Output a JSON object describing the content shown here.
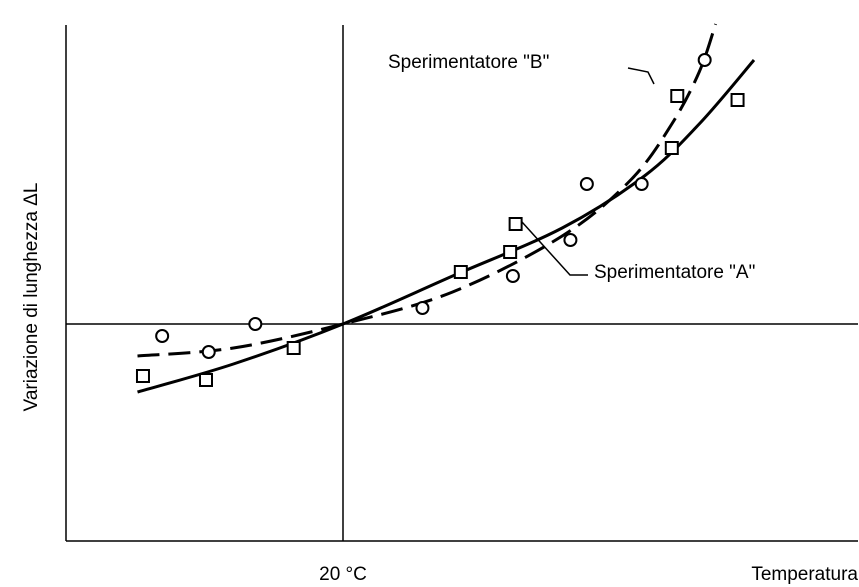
{
  "chart_data": {
    "type": "scatter",
    "title": "",
    "xlabel": "Temperatura",
    "ylabel": "Variazione di lunghezza ΔL",
    "reference_tick": "20 °C",
    "grid": false,
    "series": [
      {
        "name": "Sperimentatore \"A\"",
        "marker": "square",
        "line_style": "solid",
        "points": [
          [
            -7.3,
            -1.3
          ],
          [
            -5.0,
            -1.4
          ],
          [
            -1.8,
            -0.6
          ],
          [
            4.3,
            1.3
          ],
          [
            6.1,
            1.8
          ],
          [
            6.3,
            2.5
          ],
          [
            12.0,
            4.4
          ],
          [
            12.2,
            5.7
          ],
          [
            14.4,
            5.6
          ]
        ],
        "curve": [
          [
            -7.5,
            -1.7
          ],
          [
            -4.0,
            -1.0
          ],
          [
            0.0,
            0.0
          ],
          [
            4.0,
            1.2
          ],
          [
            8.0,
            2.4
          ],
          [
            11.0,
            3.7
          ],
          [
            13.0,
            5.0
          ],
          [
            15.0,
            6.6
          ]
        ]
      },
      {
        "name": "Sperimentatore \"B\"",
        "marker": "circle",
        "line_style": "dashed",
        "points": [
          [
            -6.6,
            -0.3
          ],
          [
            -4.9,
            -0.7
          ],
          [
            -3.2,
            0.0
          ],
          [
            2.9,
            0.4
          ],
          [
            6.2,
            1.2
          ],
          [
            8.3,
            2.1
          ],
          [
            8.9,
            3.5
          ],
          [
            10.9,
            3.5
          ],
          [
            13.2,
            6.6
          ]
        ],
        "curve": [
          [
            -7.5,
            -0.8
          ],
          [
            -4.0,
            -0.6
          ],
          [
            0.0,
            0.0
          ],
          [
            4.0,
            0.8
          ],
          [
            8.0,
            2.2
          ],
          [
            10.5,
            3.6
          ],
          [
            12.0,
            5.0
          ],
          [
            13.0,
            6.3
          ],
          [
            13.6,
            7.5
          ]
        ]
      }
    ],
    "annotations": [
      {
        "text": "Sperimentatore \"B\"",
        "series": "Sperimentatore \"B\""
      },
      {
        "text": "Sperimentatore \"A\"",
        "series": "Sperimentatore \"A\""
      }
    ]
  }
}
